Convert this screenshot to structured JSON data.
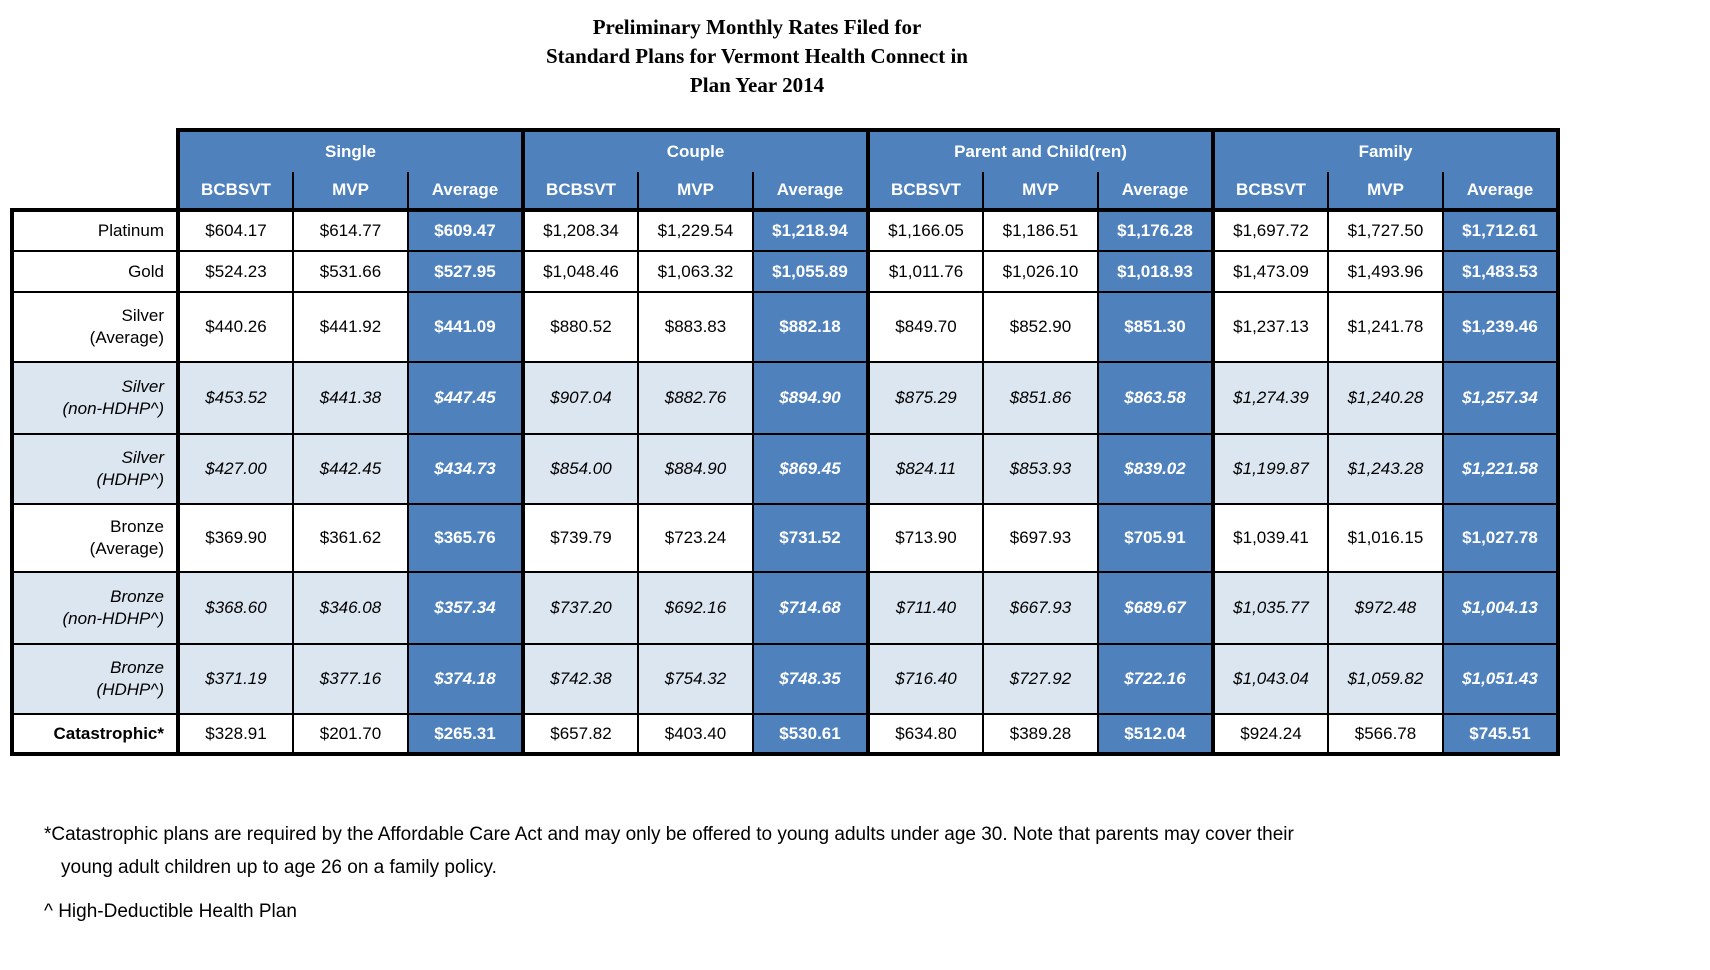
{
  "title": {
    "line1": "Preliminary Monthly Rates Filed for",
    "line2": "Standard Plans for Vermont Health Connect in",
    "line3": "Plan Year 2014"
  },
  "colors": {
    "header_blue": "#4f81bd",
    "shaded_row_blue": "#dce6f1",
    "border_black": "#000000",
    "header_text": "#ffffff"
  },
  "table": {
    "groups": [
      {
        "label": "Single"
      },
      {
        "label": "Couple"
      },
      {
        "label": "Parent and Child(ren)"
      },
      {
        "label": "Family"
      }
    ],
    "subheaders": [
      "BCBSVT",
      "MVP",
      "Average"
    ],
    "rows": [
      {
        "label": "Platinum",
        "style": "plain",
        "values": [
          "$604.17",
          "$614.77",
          "$609.47",
          "$1,208.34",
          "$1,229.54",
          "$1,218.94",
          "$1,166.05",
          "$1,186.51",
          "$1,176.28",
          "$1,697.72",
          "$1,727.50",
          "$1,712.61"
        ]
      },
      {
        "label": "Gold",
        "style": "plain",
        "values": [
          "$524.23",
          "$531.66",
          "$527.95",
          "$1,048.46",
          "$1,063.32",
          "$1,055.89",
          "$1,011.76",
          "$1,026.10",
          "$1,018.93",
          "$1,473.09",
          "$1,493.96",
          "$1,483.53"
        ]
      },
      {
        "label": "Silver",
        "label2": "(Average)",
        "style": "plain",
        "values": [
          "$440.26",
          "$441.92",
          "$441.09",
          "$880.52",
          "$883.83",
          "$882.18",
          "$849.70",
          "$852.90",
          "$851.30",
          "$1,237.13",
          "$1,241.78",
          "$1,239.46"
        ]
      },
      {
        "label": "Silver",
        "label2": "(non-HDHP^)",
        "style": "italic",
        "values": [
          "$453.52",
          "$441.38",
          "$447.45",
          "$907.04",
          "$882.76",
          "$894.90",
          "$875.29",
          "$851.86",
          "$863.58",
          "$1,274.39",
          "$1,240.28",
          "$1,257.34"
        ]
      },
      {
        "label": "Silver",
        "label2": "(HDHP^)",
        "style": "italic",
        "values": [
          "$427.00",
          "$442.45",
          "$434.73",
          "$854.00",
          "$884.90",
          "$869.45",
          "$824.11",
          "$853.93",
          "$839.02",
          "$1,199.87",
          "$1,243.28",
          "$1,221.58"
        ]
      },
      {
        "label": "Bronze",
        "label2": "(Average)",
        "style": "plain",
        "values": [
          "$369.90",
          "$361.62",
          "$365.76",
          "$739.79",
          "$723.24",
          "$731.52",
          "$713.90",
          "$697.93",
          "$705.91",
          "$1,039.41",
          "$1,016.15",
          "$1,027.78"
        ]
      },
      {
        "label": "Bronze",
        "label2": "(non-HDHP^)",
        "style": "italic",
        "values": [
          "$368.60",
          "$346.08",
          "$357.34",
          "$737.20",
          "$692.16",
          "$714.68",
          "$711.40",
          "$667.93",
          "$689.67",
          "$1,035.77",
          "$972.48",
          "$1,004.13"
        ]
      },
      {
        "label": "Bronze",
        "label2": "(HDHP^)",
        "style": "italic",
        "values": [
          "$371.19",
          "$377.16",
          "$374.18",
          "$742.38",
          "$754.32",
          "$748.35",
          "$716.40",
          "$727.92",
          "$722.16",
          "$1,043.04",
          "$1,059.82",
          "$1,051.43"
        ]
      },
      {
        "label": "Catastrophic*",
        "style": "bold",
        "values": [
          "$328.91",
          "$201.70",
          "$265.31",
          "$657.82",
          "$403.40",
          "$530.61",
          "$634.80",
          "$389.28",
          "$512.04",
          "$924.24",
          "$566.78",
          "$745.51"
        ]
      }
    ]
  },
  "footnotes": {
    "catastrophic_line1": "*Catastrophic plans are required by the Affordable Care Act and may only be offered to young adults under age 30.  Note that parents may cover their",
    "catastrophic_line2": "young adult children up to age 26 on a family policy.",
    "hdhp": "^ High-Deductible Health Plan"
  }
}
